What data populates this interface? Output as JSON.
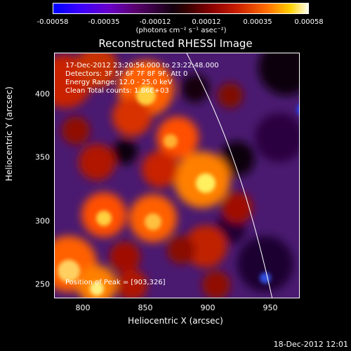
{
  "colorbar": {
    "ticks": [
      "-0.00058",
      "-0.00035",
      "-0.00012",
      "0.00012",
      "0.00035",
      "0.00058"
    ],
    "units": "(photons cm⁻² s⁻¹ asec⁻²)"
  },
  "title": "Reconstructed RHESSI Image",
  "info": {
    "time": "17-Dec-2012 23:20:56.000 to 23:22:48.000",
    "detectors": "Detectors: 3F 5F 6F 7F 8F 9F, Att 0",
    "energy": "Energy Range: 12.0 - 25.0 keV",
    "clean": "Clean     Total counts: 1.86E+03",
    "peak": "Position of Peak = [903,326]"
  },
  "axes": {
    "x_ticks": [
      "800",
      "850",
      "900",
      "950"
    ],
    "y_ticks": [
      "400",
      "350",
      "300",
      "250"
    ],
    "xlabel": "Heliocentric X (arcsec)",
    "ylabel": "Heliocentric Y (arcsec)"
  },
  "timestamp": "18-Dec-2012 12:01"
}
